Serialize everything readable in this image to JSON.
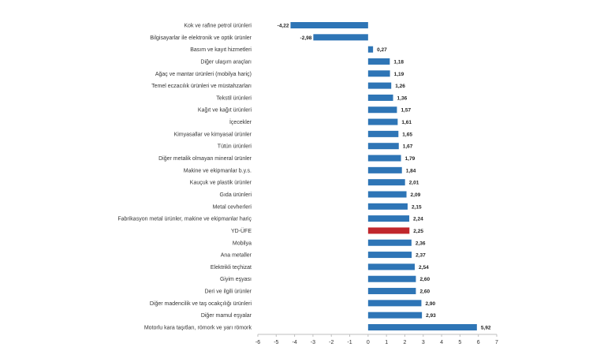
{
  "chart_data": {
    "type": "bar",
    "orientation": "horizontal",
    "categories": [
      "Kok ve rafine petrol ürünleri",
      "Bilgisayarlar ile elektronik ve optik ürünler",
      "Basım ve kayıt hizmetleri",
      "Diğer ulaşım araçları",
      "Ağaç ve mantar ürünleri (mobilya hariç)",
      "Temel eczacılık ürünleri ve müstahzarları",
      "Tekstil ürünleri",
      "Kağıt ve kağıt ürünleri",
      "İçecekler",
      "Kimyasallar ve kimyasal ürünler",
      "Tütün ürünleri",
      "Diğer metalik olmayan mineral ürünler",
      "Makine ve ekipmanlar b.y.s.",
      "Kauçuk ve plastik ürünler",
      "Gıda ürünleri",
      "Metal cevherleri",
      "Fabrikasyon metal ürünler, makine ve ekipmanlar hariç",
      "YD-ÜFE",
      "Mobilya",
      "Ana metaller",
      "Elektrikli teçhizat",
      "Giyim eşyası",
      "Deri ve ilgili ürünler",
      "Diğer madencilik ve taş ocakçılığı ürünleri",
      "Diğer mamul eşyalar",
      "Motorlu kara taşıtları, römork ve yarı römork"
    ],
    "values": [
      -4.22,
      -2.98,
      0.27,
      1.18,
      1.19,
      1.26,
      1.36,
      1.57,
      1.61,
      1.65,
      1.67,
      1.79,
      1.84,
      2.01,
      2.09,
      2.15,
      2.24,
      2.25,
      2.36,
      2.37,
      2.54,
      2.6,
      2.6,
      2.9,
      2.93,
      5.92
    ],
    "value_labels": [
      "-4,22",
      "-2,98",
      "0,27",
      "1,18",
      "1,19",
      "1,26",
      "1,36",
      "1,57",
      "1,61",
      "1,65",
      "1,67",
      "1,79",
      "1,84",
      "2,01",
      "2,09",
      "2,15",
      "2,24",
      "2,25",
      "2,36",
      "2,37",
      "2,54",
      "2,60",
      "2,60",
      "2,90",
      "2,93",
      "5,92"
    ],
    "highlight_category": "YD-ÜFE",
    "xlim": [
      -6,
      7
    ],
    "x_ticks": [
      -6,
      -5,
      -4,
      -3,
      -2,
      -1,
      0,
      1,
      2,
      3,
      4,
      5,
      6,
      7
    ],
    "title": "",
    "xlabel": "",
    "ylabel": "",
    "grid": false,
    "colors": {
      "bar": "#2e75b6",
      "highlight": "#c0272d",
      "axis": "#bfbfbf"
    }
  }
}
